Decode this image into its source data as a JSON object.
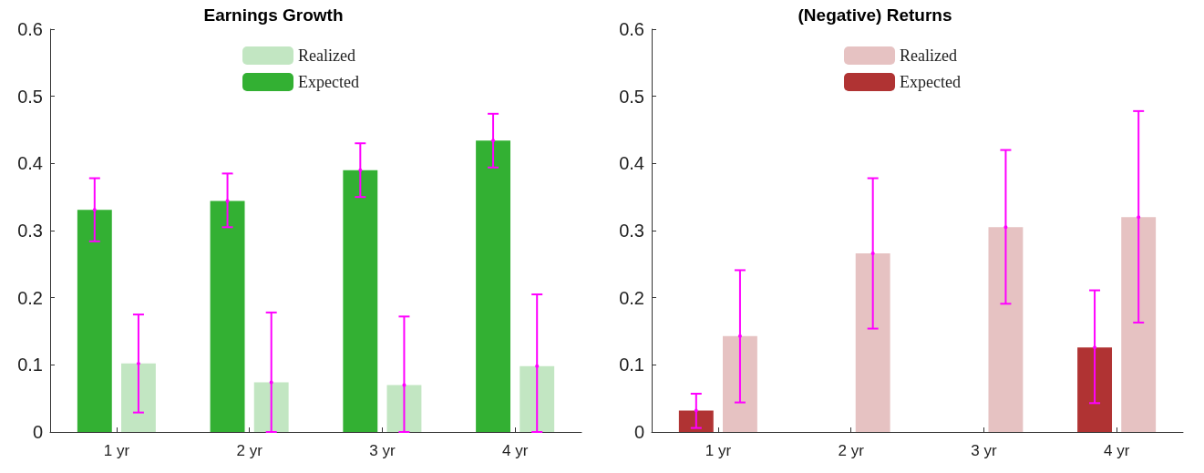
{
  "chart_data": [
    {
      "type": "bar",
      "title": "Earnings Growth",
      "categories": [
        "1 yr",
        "2 yr",
        "3 yr",
        "4 yr"
      ],
      "ylim": [
        0,
        0.6
      ],
      "yticks": [
        0,
        0.1,
        0.2,
        0.3,
        0.4,
        0.5,
        0.6
      ],
      "grid": false,
      "legend": "top",
      "series": [
        {
          "name": "Expected",
          "color": "#33b033",
          "values": [
            0.331,
            0.344,
            0.39,
            0.434
          ],
          "errors": [
            [
              0.284,
              0.378
            ],
            [
              0.305,
              0.385
            ],
            [
              0.35,
              0.43
            ],
            [
              0.394,
              0.474
            ]
          ]
        },
        {
          "name": "Realized",
          "color": "#c2e6c2",
          "values": [
            0.102,
            0.074,
            0.07,
            0.098
          ],
          "errors": [
            [
              0.029,
              0.175
            ],
            [
              0,
              0.178
            ],
            [
              0,
              0.172
            ],
            [
              0,
              0.205
            ]
          ]
        }
      ]
    },
    {
      "type": "bar",
      "title": "(Negative) Returns",
      "categories": [
        "1 yr",
        "2 yr",
        "3 yr",
        "4 yr"
      ],
      "ylim": [
        0,
        0.6
      ],
      "yticks": [
        0,
        0.1,
        0.2,
        0.3,
        0.4,
        0.5,
        0.6
      ],
      "grid": false,
      "legend": "top",
      "series": [
        {
          "name": "Expected",
          "color": "#b03333",
          "values": [
            0.032,
            null,
            null,
            0.126
          ],
          "errors": [
            [
              0.006,
              0.057
            ],
            null,
            null,
            [
              0.043,
              0.211
            ]
          ]
        },
        {
          "name": "Realized",
          "color": "#e6c2c2",
          "values": [
            0.143,
            0.266,
            0.305,
            0.32
          ],
          "errors": [
            [
              0.044,
              0.241
            ],
            [
              0.154,
              0.378
            ],
            [
              0.191,
              0.42
            ],
            [
              0.163,
              0.478
            ]
          ]
        }
      ]
    }
  ]
}
